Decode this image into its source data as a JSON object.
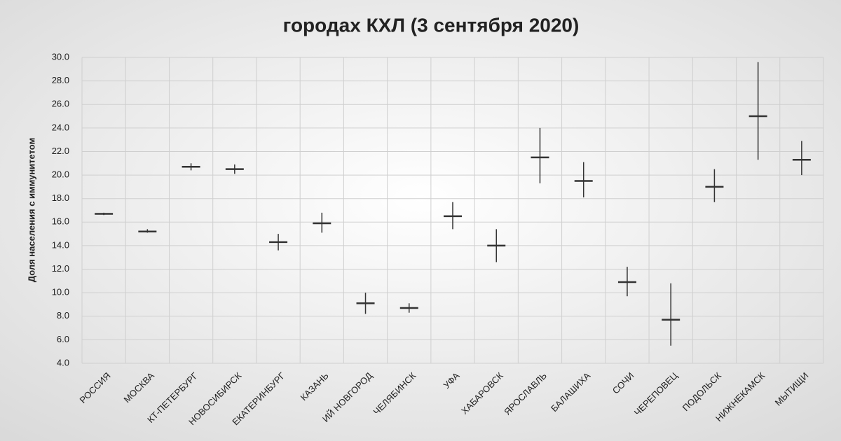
{
  "chart_data": {
    "type": "errorbar",
    "title": "городах КХЛ  (3 сентября 2020)",
    "y_label": "Доля населения с иммунитетом",
    "categories": [
      "РОССИЯ",
      "МОСКВА",
      "КТ-ПЕТЕРБУРГ",
      "НОВОСИБИРСК",
      "ЕКАТЕРИНБУРГ",
      "КАЗАНЬ",
      "ИЙ НОВГОРОД",
      "ЧЕЛЯБИНСК",
      "УФА",
      "ХАБАРОВСК",
      "ЯРОСЛАВЛЬ",
      "БАЛАШИХА",
      "СОЧИ",
      "ЧЕРЕПОВЕЦ",
      "ПОДОЛЬСК",
      "НИЖНЕКАМСК",
      "МЫТИЩИ"
    ],
    "values": [
      16.7,
      15.2,
      20.7,
      20.5,
      14.3,
      15.9,
      9.1,
      8.7,
      16.5,
      14.0,
      21.5,
      19.5,
      10.9,
      7.7,
      19.0,
      25.0,
      21.3
    ],
    "low": [
      16.6,
      15.1,
      20.4,
      20.1,
      13.6,
      15.1,
      8.2,
      8.3,
      15.4,
      12.6,
      19.3,
      18.1,
      9.7,
      5.5,
      17.7,
      21.3,
      20.0
    ],
    "high": [
      16.8,
      15.4,
      21.0,
      20.9,
      15.0,
      16.8,
      10.0,
      9.1,
      17.7,
      15.4,
      24.0,
      21.1,
      12.2,
      10.8,
      20.5,
      29.6,
      22.9
    ],
    "color": "#333333",
    "ylim": [
      4,
      30
    ],
    "yticks": [
      {
        "value": 4,
        "label": "4.0"
      },
      {
        "value": 6,
        "label": "6.0"
      },
      {
        "value": 8,
        "label": "8.0"
      },
      {
        "value": 10,
        "label": "10.0"
      },
      {
        "value": 12,
        "label": "12.0"
      },
      {
        "value": 14,
        "label": "14.0"
      },
      {
        "value": 16,
        "label": "16.0"
      },
      {
        "value": 18,
        "label": "18.0"
      },
      {
        "value": 20,
        "label": "20.0"
      },
      {
        "value": 22,
        "label": "22.0"
      },
      {
        "value": 24,
        "label": "24.0"
      },
      {
        "value": 26,
        "label": "26.0"
      },
      {
        "value": 28,
        "label": "28.0"
      },
      {
        "value": 30,
        "label": "30.0"
      }
    ],
    "grid": true
  }
}
